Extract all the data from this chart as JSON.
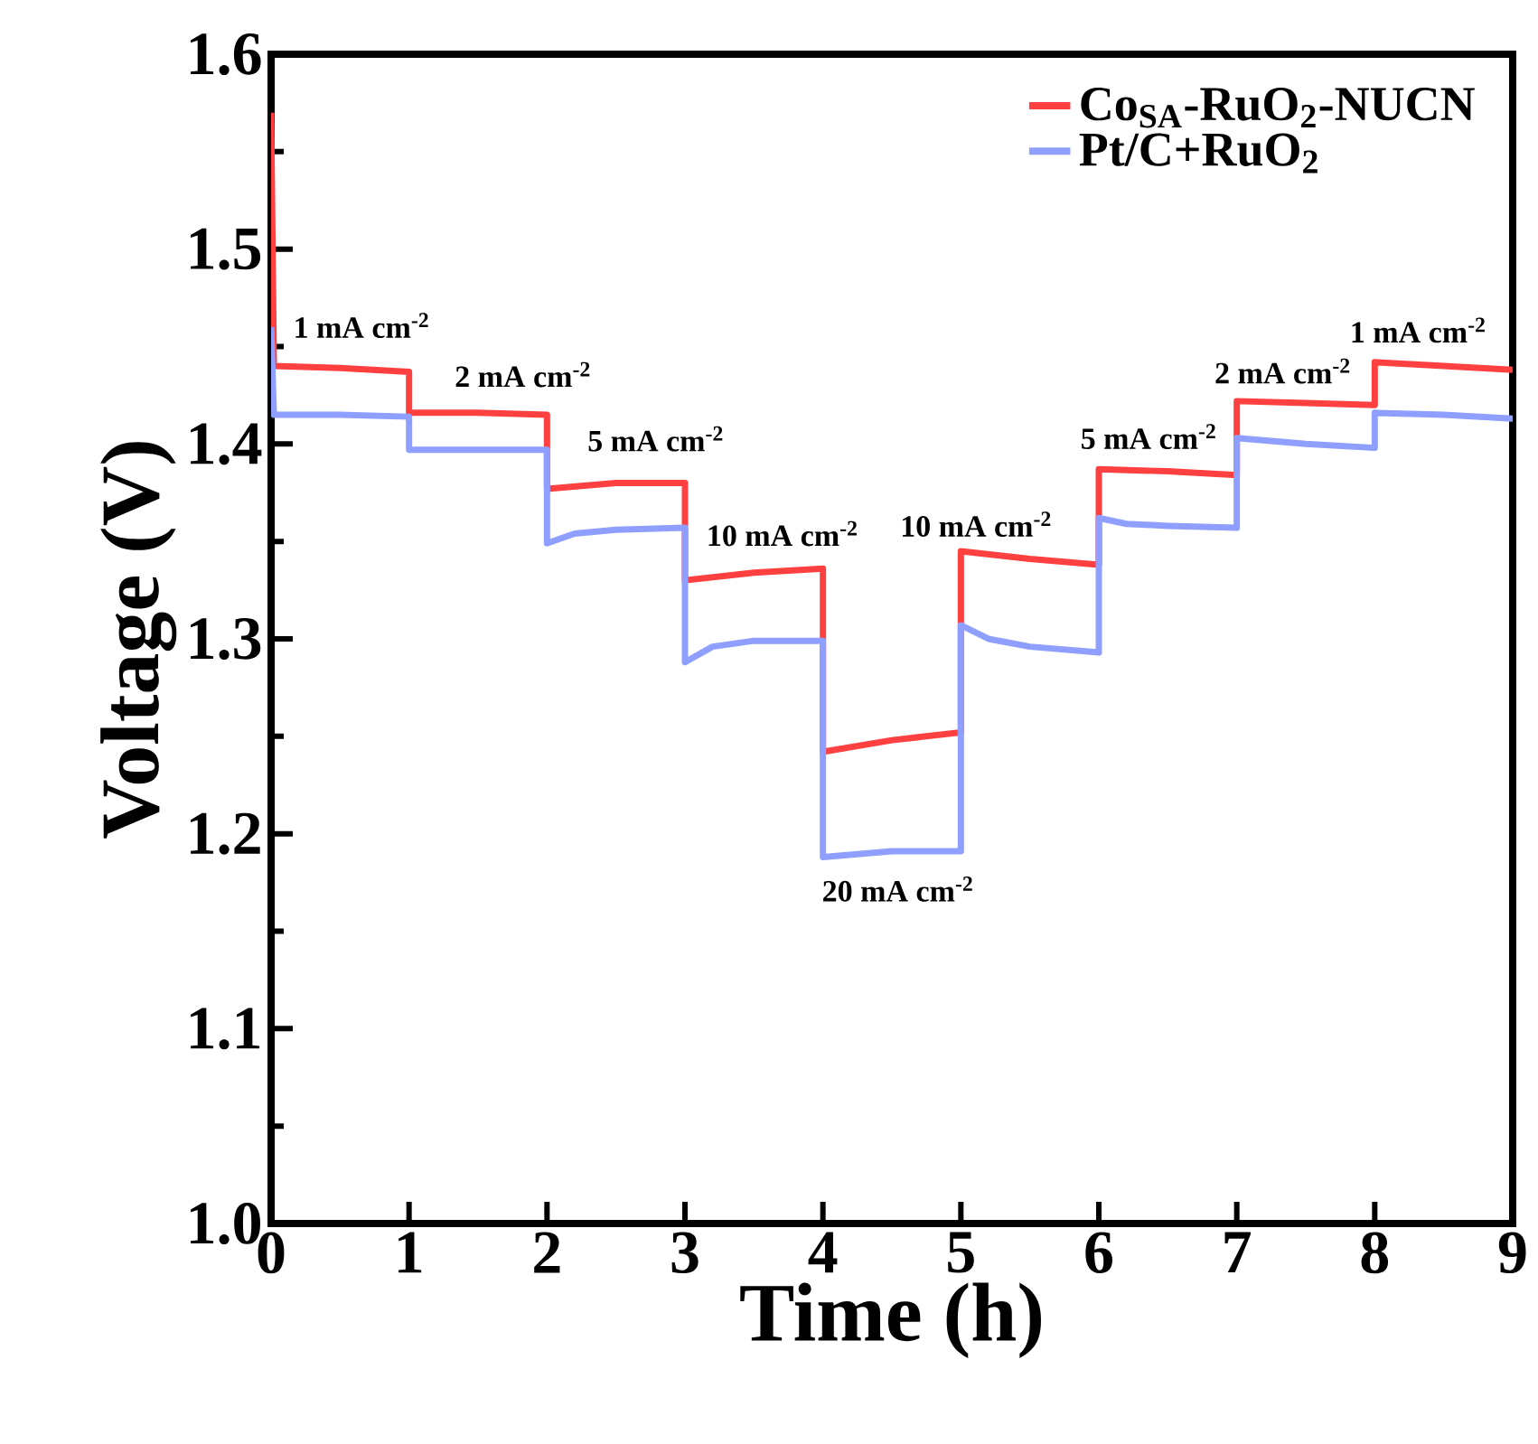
{
  "chart_data": {
    "type": "line",
    "xlabel": "Time (h)",
    "ylabel": "Voltage (V)",
    "xlim": [
      0,
      9
    ],
    "ylim": [
      1.0,
      1.6
    ],
    "xticks": [
      0,
      1,
      2,
      3,
      4,
      5,
      6,
      7,
      8,
      9
    ],
    "yticks": [
      {
        "value": 1.0,
        "label": "1.0"
      },
      1.1,
      1.2,
      1.3,
      1.4,
      1.5,
      1.6
    ],
    "legend": "top right",
    "series": [
      {
        "name": "Co$_{SA}$-RuO$_{2}$-NUCN",
        "color": "#ff4040",
        "x": [
          0,
          0.02,
          0.5,
          1,
          1,
          1.5,
          2,
          2,
          2.5,
          3,
          3,
          3.5,
          4,
          4,
          4.5,
          5,
          5,
          5.5,
          6,
          6,
          6.5,
          7,
          7,
          7.5,
          8,
          8,
          8.5,
          9
        ],
        "values": [
          1.57,
          1.44,
          1.439,
          1.437,
          1.416,
          1.416,
          1.415,
          1.377,
          1.38,
          1.38,
          1.33,
          1.334,
          1.336,
          1.242,
          1.248,
          1.252,
          1.345,
          1.341,
          1.338,
          1.387,
          1.386,
          1.384,
          1.422,
          1.421,
          1.42,
          1.442,
          1.44,
          1.438
        ]
      },
      {
        "name": "Pt/C+RuO$_{2}$",
        "color": "#8f9fff",
        "x": [
          0,
          0.02,
          0.5,
          1,
          1,
          1.5,
          2,
          2,
          2.2,
          2.5,
          3,
          3,
          3.2,
          3.5,
          4,
          4,
          4.5,
          5,
          5,
          5.2,
          5.5,
          6,
          6,
          6.2,
          6.5,
          7,
          7,
          7.5,
          8,
          8,
          8.5,
          9
        ],
        "values": [
          1.46,
          1.415,
          1.415,
          1.414,
          1.397,
          1.397,
          1.397,
          1.349,
          1.354,
          1.356,
          1.357,
          1.288,
          1.296,
          1.299,
          1.299,
          1.188,
          1.191,
          1.191,
          1.307,
          1.3,
          1.296,
          1.293,
          1.362,
          1.359,
          1.358,
          1.357,
          1.403,
          1.4,
          1.398,
          1.416,
          1.415,
          1.413
        ]
      }
    ],
    "annotations": [
      "1 mA cm$^{-2}$",
      "2 mA cm$^{-2}$",
      "5 mA cm$^{-2}$",
      "10 mA cm$^{-2}$",
      "10 mA cm$^{-2}$",
      "20 mA cm$^{-2}$",
      "5 mA cm$^{-2}$",
      "2 mA cm$^{-2}$",
      "1 mA cm$^{-2}$"
    ]
  }
}
